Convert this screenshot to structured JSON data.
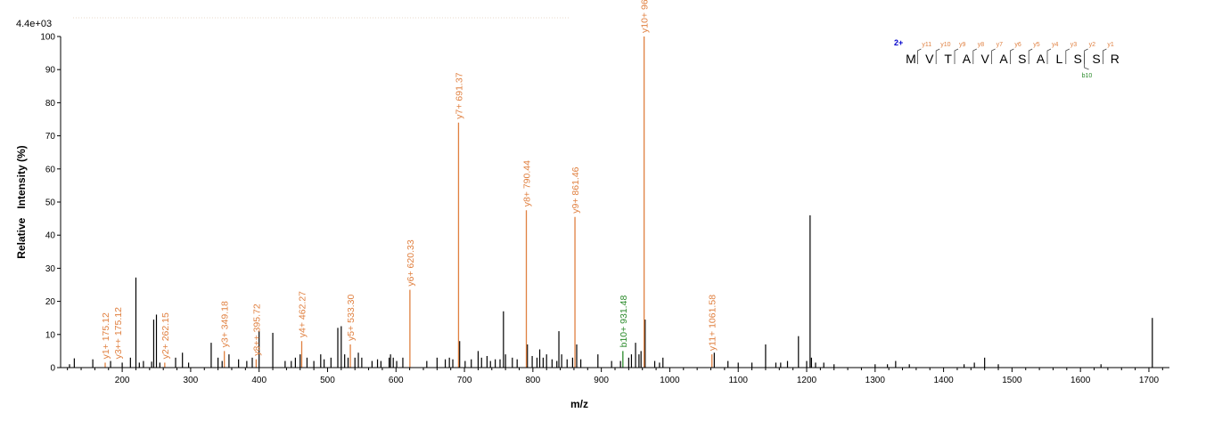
{
  "chart_data": {
    "type": "bar",
    "max_intensity_label": "4.4e+03",
    "xlabel": "m/z",
    "ylabel": "Relative   Intensity (%)",
    "xlim": [
      110,
      1730
    ],
    "ylim": [
      0,
      100
    ],
    "x_ticks": [
      200,
      300,
      400,
      500,
      600,
      700,
      800,
      900,
      1000,
      1100,
      1200,
      1300,
      1400,
      1500,
      1600,
      1700
    ],
    "y_ticks": [
      0,
      10,
      20,
      30,
      40,
      50,
      60,
      70,
      80,
      90,
      100
    ],
    "colors": {
      "y_ion": "#e08040",
      "b_ion": "#2a8a2a",
      "unassigned": "#000000",
      "charge": "#0000cc"
    },
    "annotated_peaks": [
      {
        "mz": 175.12,
        "intensity": 1.5,
        "label": "y1+ 175.12",
        "type": "y"
      },
      {
        "mz": 175.12,
        "intensity": 1.5,
        "label": "y3++ 175.12",
        "type": "y"
      },
      {
        "mz": 262.15,
        "intensity": 1.5,
        "label": "y2+ 262.15",
        "type": "y"
      },
      {
        "mz": 349.18,
        "intensity": 5,
        "label": "y3+ 349.18",
        "type": "y"
      },
      {
        "mz": 395.72,
        "intensity": 2.5,
        "label": "y8++ 395.72",
        "type": "y"
      },
      {
        "mz": 462.27,
        "intensity": 8,
        "label": "y4+ 462.27",
        "type": "y"
      },
      {
        "mz": 533.3,
        "intensity": 7,
        "label": "y5+ 533.30",
        "type": "y"
      },
      {
        "mz": 620.33,
        "intensity": 23.5,
        "label": "y6+ 620.33",
        "type": "y"
      },
      {
        "mz": 691.37,
        "intensity": 74,
        "label": "y7+ 691.37",
        "type": "y"
      },
      {
        "mz": 790.44,
        "intensity": 47.5,
        "label": "y8+ 790.44",
        "type": "y"
      },
      {
        "mz": 861.46,
        "intensity": 45.5,
        "label": "y9+ 861.46",
        "type": "y"
      },
      {
        "mz": 931.48,
        "intensity": 5,
        "label": "b10+ 931.48",
        "type": "b"
      },
      {
        "mz": 962.5,
        "intensity": 100,
        "label": "y10+ 962.5",
        "type": "y"
      },
      {
        "mz": 1061.58,
        "intensity": 4,
        "label": "y11+ 1061.58",
        "type": "y"
      }
    ],
    "unassigned_peaks": [
      [
        123,
        1
      ],
      [
        130,
        2.8
      ],
      [
        157,
        2.5
      ],
      [
        183,
        2
      ],
      [
        200,
        1.5
      ],
      [
        212,
        3
      ],
      [
        220,
        27.2
      ],
      [
        225,
        1.5
      ],
      [
        231,
        2
      ],
      [
        243,
        1.8
      ],
      [
        246,
        14.5
      ],
      [
        250,
        16
      ],
      [
        255,
        1.5
      ],
      [
        278,
        3
      ],
      [
        288,
        4.5
      ],
      [
        297,
        1.5
      ],
      [
        330,
        7.5
      ],
      [
        340,
        3
      ],
      [
        346,
        2
      ],
      [
        356,
        4
      ],
      [
        370,
        2.5
      ],
      [
        382,
        2
      ],
      [
        390,
        3
      ],
      [
        400,
        11
      ],
      [
        420,
        10.5
      ],
      [
        438,
        2
      ],
      [
        447,
        2
      ],
      [
        453,
        3
      ],
      [
        460,
        4
      ],
      [
        470,
        3
      ],
      [
        480,
        2
      ],
      [
        490,
        4
      ],
      [
        495,
        2.5
      ],
      [
        505,
        3
      ],
      [
        515,
        12
      ],
      [
        520,
        12.5
      ],
      [
        525,
        4
      ],
      [
        530,
        3
      ],
      [
        540,
        3
      ],
      [
        545,
        4.5
      ],
      [
        550,
        3
      ],
      [
        565,
        2
      ],
      [
        573,
        2.5
      ],
      [
        578,
        2
      ],
      [
        590,
        3
      ],
      [
        592,
        4
      ],
      [
        596,
        3
      ],
      [
        601,
        2
      ],
      [
        610,
        3
      ],
      [
        645,
        2
      ],
      [
        660,
        3
      ],
      [
        672,
        2.5
      ],
      [
        678,
        3
      ],
      [
        683,
        2.5
      ],
      [
        693,
        8
      ],
      [
        701,
        2
      ],
      [
        710,
        2.5
      ],
      [
        720,
        5
      ],
      [
        725,
        3
      ],
      [
        733,
        3.5
      ],
      [
        738,
        2
      ],
      [
        745,
        2.5
      ],
      [
        752,
        2.5
      ],
      [
        757,
        17
      ],
      [
        760,
        4
      ],
      [
        770,
        3
      ],
      [
        777,
        2.5
      ],
      [
        792,
        7
      ],
      [
        799,
        3.5
      ],
      [
        806,
        3
      ],
      [
        810,
        5.5
      ],
      [
        815,
        3
      ],
      [
        820,
        4
      ],
      [
        828,
        2.5
      ],
      [
        835,
        2
      ],
      [
        838,
        11
      ],
      [
        842,
        4
      ],
      [
        850,
        2.5
      ],
      [
        858,
        3
      ],
      [
        864,
        7
      ],
      [
        870,
        2.5
      ],
      [
        895,
        4
      ],
      [
        915,
        2
      ],
      [
        928,
        2
      ],
      [
        940,
        3
      ],
      [
        944,
        4
      ],
      [
        950,
        7.5
      ],
      [
        955,
        4
      ],
      [
        958,
        5
      ],
      [
        964,
        14.5
      ],
      [
        978,
        2
      ],
      [
        985,
        1.5
      ],
      [
        990,
        3
      ],
      [
        1065,
        4.5
      ],
      [
        1085,
        2
      ],
      [
        1100,
        1.5
      ],
      [
        1120,
        1.5
      ],
      [
        1140,
        7
      ],
      [
        1155,
        1.5
      ],
      [
        1162,
        1.5
      ],
      [
        1172,
        2
      ],
      [
        1188,
        9.5
      ],
      [
        1200,
        2
      ],
      [
        1205,
        46
      ],
      [
        1207,
        3
      ],
      [
        1213,
        1.5
      ],
      [
        1225,
        1.5
      ],
      [
        1240,
        1
      ],
      [
        1300,
        1
      ],
      [
        1318,
        1
      ],
      [
        1330,
        2
      ],
      [
        1350,
        1
      ],
      [
        1430,
        1
      ],
      [
        1445,
        1.5
      ],
      [
        1460,
        3
      ],
      [
        1480,
        1
      ],
      [
        1630,
        1
      ],
      [
        1705,
        15
      ]
    ],
    "sequence": {
      "charge": "2+",
      "residues": [
        "M",
        "V",
        "T",
        "A",
        "V",
        "A",
        "S",
        "A",
        "L",
        "S",
        "S",
        "R"
      ],
      "y_ions": [
        "y11",
        "y10",
        "y9",
        "y8",
        "y7",
        "y6",
        "y5",
        "y4",
        "y3",
        "y2",
        "y1"
      ],
      "b_ions": [
        "b10"
      ]
    }
  }
}
